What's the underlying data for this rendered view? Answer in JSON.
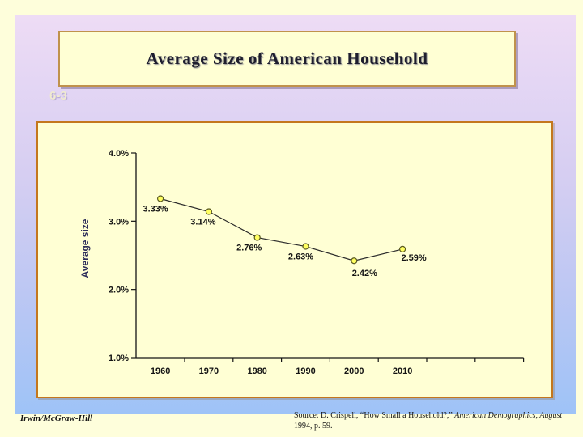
{
  "slide": {
    "title": "Average Size of American Household",
    "slide_number": "6-3",
    "footer_left": "Irwin/McGraw-Hill",
    "source_prefix": "Source: D. Crispell, “How Small a Household?,” ",
    "source_italic": "American Demographics, August",
    "source_suffix": " 1994, p. 59."
  },
  "chart_data": {
    "type": "line",
    "title": "",
    "xlabel": "",
    "ylabel": "Average size",
    "categories": [
      "1960",
      "1970",
      "1980",
      "1990",
      "2000",
      "2010"
    ],
    "values": [
      3.33,
      3.14,
      2.76,
      2.63,
      2.42,
      2.59
    ],
    "point_labels": [
      "3.33%",
      "3.14%",
      "2.76%",
      "2.63%",
      "2.42%",
      "2.59%"
    ],
    "y_tick_labels": [
      "4.0%",
      "3.0%",
      "2.0%",
      "1.0%"
    ],
    "ylim": [
      1.0,
      4.0
    ],
    "x_axis_extra_ticks": 2,
    "grid": "off",
    "legend": "none",
    "line_color": "#2a2a2a",
    "marker_fill": "#ffff60",
    "marker_stroke": "#5a5a20",
    "axis_color": "#141414",
    "ylabel_color": "#2d2d5a"
  }
}
